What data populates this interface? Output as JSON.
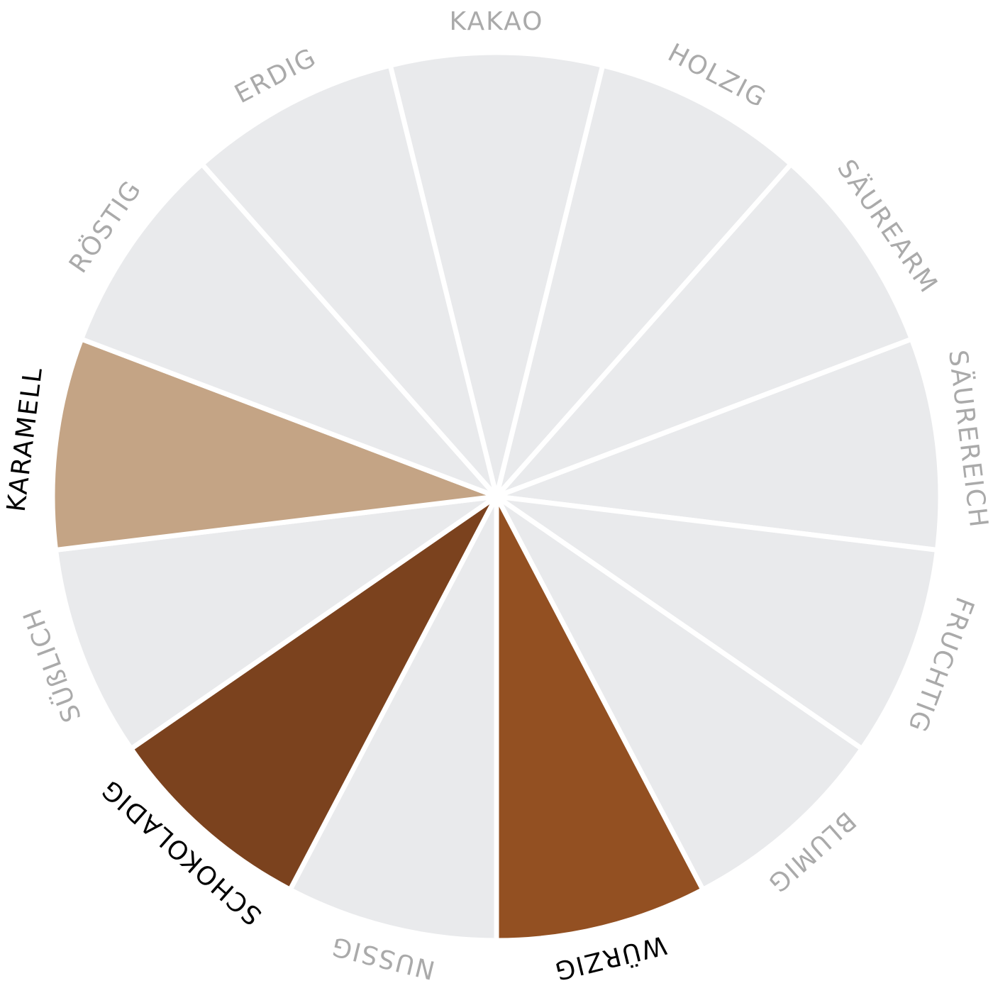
{
  "wheel": {
    "segments": [
      {
        "label": "KAKAO",
        "color": "#e9eaec",
        "label_color": "#aaaaaa"
      },
      {
        "label": "HOLZIG",
        "color": "#e9eaec",
        "label_color": "#aaaaaa"
      },
      {
        "label": "SÄUREARM",
        "color": "#e9eaec",
        "label_color": "#aaaaaa"
      },
      {
        "label": "SÄUREREICH",
        "color": "#e9eaec",
        "label_color": "#aaaaaa"
      },
      {
        "label": "FRUCHTIG",
        "color": "#e9eaec",
        "label_color": "#aaaaaa"
      },
      {
        "label": "BLUMIG",
        "color": "#e9eaec",
        "label_color": "#aaaaaa"
      },
      {
        "label": "WÜRZIG",
        "color": "#935022",
        "label_color": "#000000"
      },
      {
        "label": "NUSSIG",
        "color": "#e9eaec",
        "label_color": "#aaaaaa"
      },
      {
        "label": "SCHOKOLADIG",
        "color": "#7b421e",
        "label_color": "#000000"
      },
      {
        "label": "SÜßLICH",
        "color": "#e9eaec",
        "label_color": "#aaaaaa"
      },
      {
        "label": "KARAMELL",
        "color": "#c4a485",
        "label_color": "#000000"
      },
      {
        "label": "RÖSTIG",
        "color": "#e9eaec",
        "label_color": "#aaaaaa"
      },
      {
        "label": "ERDIG",
        "color": "#e9eaec",
        "label_color": "#aaaaaa"
      }
    ]
  }
}
